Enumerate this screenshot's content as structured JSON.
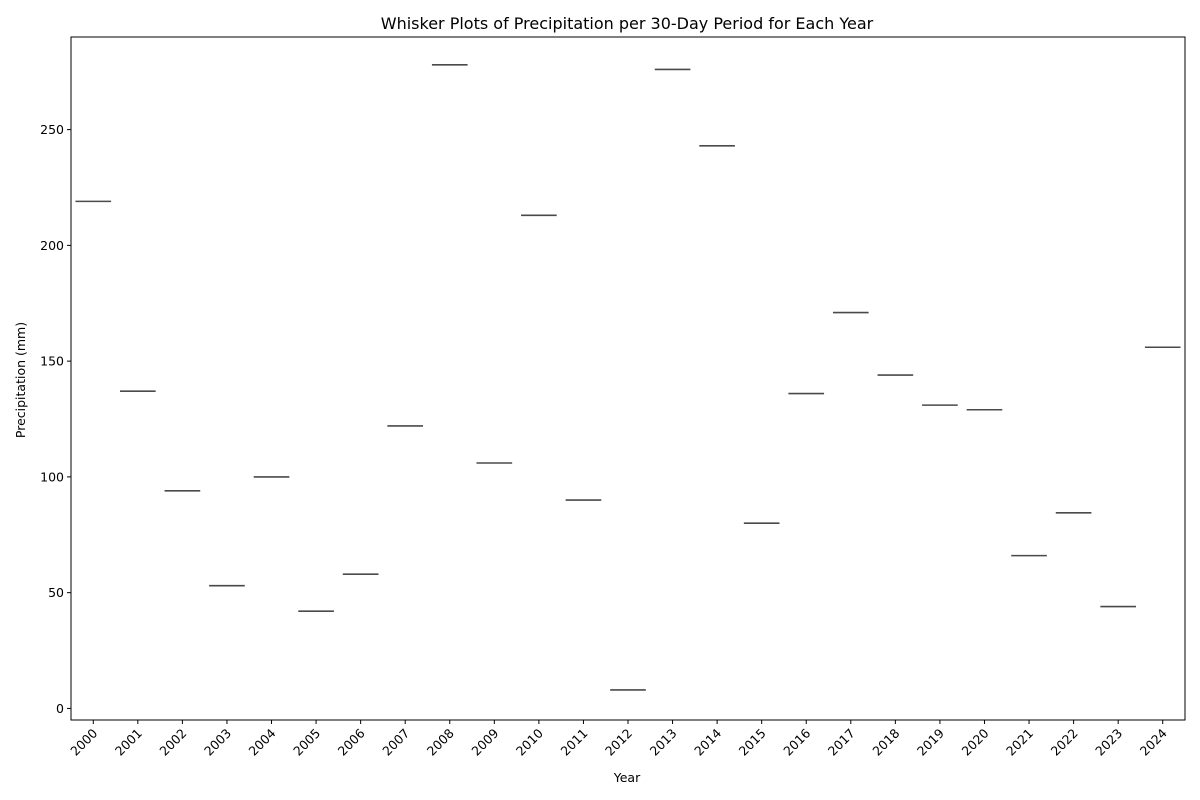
{
  "chart_data": {
    "type": "box",
    "title": "Whisker Plots of Precipitation per 30-Day Period for Each Year",
    "xlabel": "Year",
    "ylabel": "Precipitation (mm)",
    "ylim": [
      -5,
      290
    ],
    "yticks": [
      0,
      50,
      100,
      150,
      200,
      250
    ],
    "grid": false,
    "categories": [
      "2000",
      "2001",
      "2002",
      "2003",
      "2004",
      "2005",
      "2006",
      "2007",
      "2008",
      "2009",
      "2010",
      "2011",
      "2012",
      "2013",
      "2014",
      "2015",
      "2016",
      "2017",
      "2018",
      "2019",
      "2020",
      "2021",
      "2022",
      "2023",
      "2024"
    ],
    "values": [
      219,
      137,
      94,
      53,
      100,
      42,
      58,
      122,
      278,
      106,
      213,
      90,
      8,
      276,
      243,
      80,
      136,
      171,
      144,
      131,
      129,
      66,
      84.5,
      44,
      156
    ],
    "colors": {
      "median": "#4a4a4a",
      "axis": "#000000"
    }
  }
}
